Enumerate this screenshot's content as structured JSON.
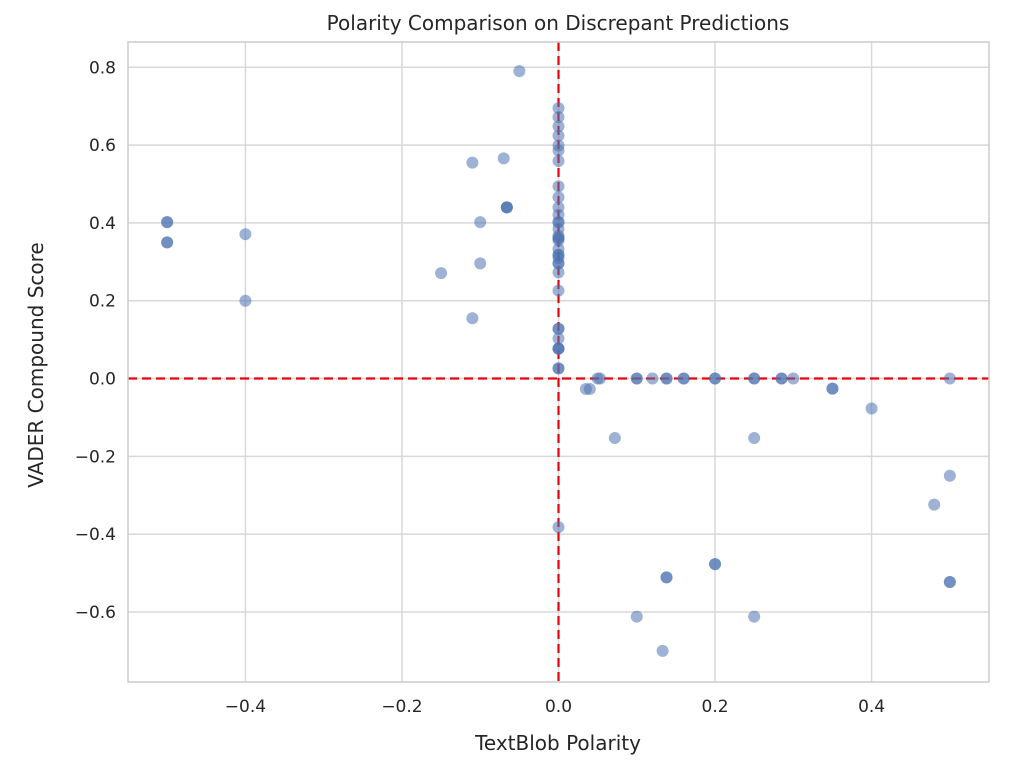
{
  "chart_data": {
    "type": "scatter",
    "title": "Polarity Comparison on Discrepant Predictions",
    "xlabel": "TextBlob Polarity",
    "ylabel": "VADER Compound Score",
    "xlim": [
      -0.55,
      0.55
    ],
    "ylim": [
      -0.78,
      0.865
    ],
    "xticks": [
      -0.4,
      -0.2,
      0.0,
      0.2,
      0.4
    ],
    "xtick_labels": [
      "−0.4",
      "−0.2",
      "0.0",
      "0.2",
      "0.4"
    ],
    "yticks": [
      -0.6,
      -0.4,
      -0.2,
      0.0,
      0.2,
      0.4,
      0.6,
      0.8
    ],
    "ytick_labels": [
      "−0.6",
      "−0.4",
      "−0.2",
      "0.0",
      "0.2",
      "0.4",
      "0.6",
      "0.8"
    ],
    "grid": true,
    "reference_lines": {
      "x": 0.0,
      "y": 0.0
    },
    "colors": {
      "points": "#4c72b0",
      "reference": "#e8000b",
      "grid": "#d8d8d8",
      "spine": "#cccccc"
    },
    "point_alpha": 0.55,
    "points": [
      [
        -0.05,
        0.79
      ],
      [
        -0.5,
        0.402
      ],
      [
        -0.5,
        0.402
      ],
      [
        -0.5,
        0.35
      ],
      [
        -0.5,
        0.35
      ],
      [
        -0.4,
        0.371
      ],
      [
        -0.4,
        0.2
      ],
      [
        -0.11,
        0.555
      ],
      [
        -0.07,
        0.566
      ],
      [
        -0.066,
        0.44
      ],
      [
        -0.066,
        0.44
      ],
      [
        -0.066,
        0.44
      ],
      [
        -0.1,
        0.402
      ],
      [
        -0.1,
        0.296
      ],
      [
        -0.15,
        0.271
      ],
      [
        -0.11,
        0.155
      ],
      [
        0.0,
        0.695
      ],
      [
        0.0,
        0.672
      ],
      [
        0.0,
        0.648
      ],
      [
        0.0,
        0.624
      ],
      [
        0.0,
        0.599
      ],
      [
        0.0,
        0.586
      ],
      [
        0.0,
        0.559
      ],
      [
        0.0,
        0.494
      ],
      [
        0.0,
        0.466
      ],
      [
        0.0,
        0.44
      ],
      [
        0.0,
        0.421
      ],
      [
        0.0,
        0.402
      ],
      [
        0.0,
        0.402
      ],
      [
        0.0,
        0.385
      ],
      [
        0.0,
        0.367
      ],
      [
        0.0,
        0.361
      ],
      [
        0.0,
        0.361
      ],
      [
        0.0,
        0.355
      ],
      [
        0.0,
        0.333
      ],
      [
        0.0,
        0.318
      ],
      [
        0.0,
        0.318
      ],
      [
        0.0,
        0.31
      ],
      [
        0.0,
        0.296
      ],
      [
        0.0,
        0.296
      ],
      [
        0.0,
        0.273
      ],
      [
        0.0,
        0.226
      ],
      [
        0.0,
        0.128
      ],
      [
        0.0,
        0.128
      ],
      [
        0.0,
        0.103
      ],
      [
        0.0,
        0.077
      ],
      [
        0.0,
        0.077
      ],
      [
        0.0,
        0.077
      ],
      [
        0.0,
        0.026
      ],
      [
        0.0,
        0.026
      ],
      [
        0.0,
        -0.382
      ],
      [
        0.035,
        -0.027
      ],
      [
        0.04,
        -0.027
      ],
      [
        0.05,
        0.0
      ],
      [
        0.053,
        0.0
      ],
      [
        0.1,
        0.0
      ],
      [
        0.1,
        0.0
      ],
      [
        0.12,
        0.0
      ],
      [
        0.138,
        0.0
      ],
      [
        0.138,
        0.0
      ],
      [
        0.16,
        0.0
      ],
      [
        0.16,
        0.0
      ],
      [
        0.2,
        0.0
      ],
      [
        0.2,
        0.0
      ],
      [
        0.25,
        0.0
      ],
      [
        0.25,
        0.0
      ],
      [
        0.285,
        0.0
      ],
      [
        0.285,
        0.0
      ],
      [
        0.3,
        0.0
      ],
      [
        0.5,
        0.0
      ],
      [
        0.35,
        -0.026
      ],
      [
        0.35,
        -0.026
      ],
      [
        0.4,
        -0.077
      ],
      [
        0.072,
        -0.153
      ],
      [
        0.25,
        -0.153
      ],
      [
        0.5,
        -0.25
      ],
      [
        0.48,
        -0.324
      ],
      [
        0.138,
        -0.511
      ],
      [
        0.138,
        -0.511
      ],
      [
        0.2,
        -0.477
      ],
      [
        0.2,
        -0.477
      ],
      [
        0.5,
        -0.523
      ],
      [
        0.5,
        -0.523
      ],
      [
        0.1,
        -0.612
      ],
      [
        0.25,
        -0.612
      ],
      [
        0.133,
        -0.7
      ]
    ]
  }
}
